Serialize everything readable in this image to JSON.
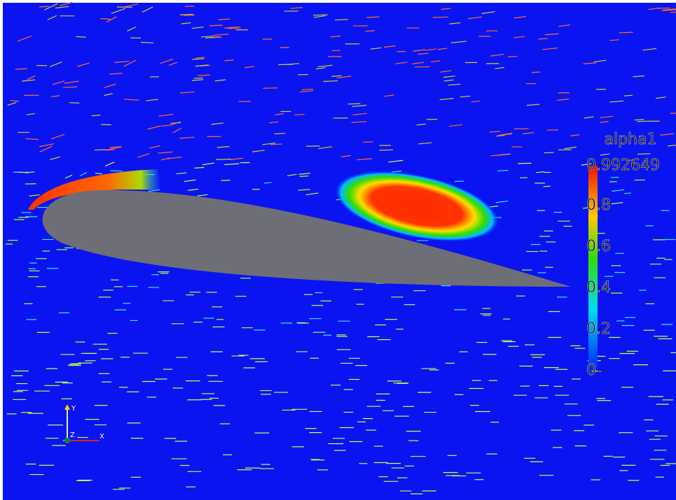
{
  "colorbar": {
    "title": "alpha1",
    "range": [
      0,
      0.992649
    ],
    "ticks": [
      0.992649,
      0.8,
      0.6,
      0.4,
      0.2,
      0
    ]
  },
  "axes": {
    "y": "Y",
    "z": "Z",
    "x": "X"
  }
}
